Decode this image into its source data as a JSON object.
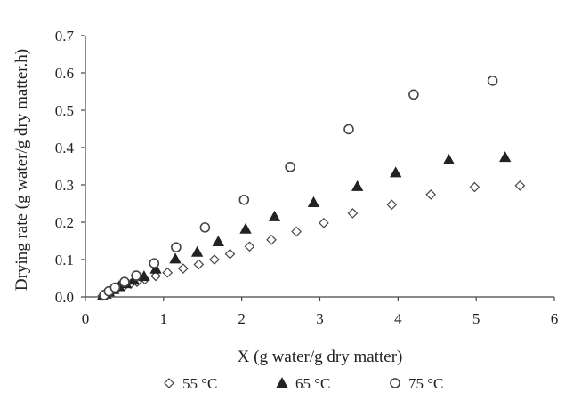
{
  "chart_data": {
    "type": "scatter",
    "xlabel": "X (g water/g dry matter)",
    "ylabel": "Drying rate (g water/g dry matter.h)",
    "xlim": [
      0,
      6
    ],
    "ylim": [
      0,
      0.7
    ],
    "xticks": [
      0,
      1,
      2,
      3,
      4,
      5,
      6
    ],
    "yticks": [
      0.0,
      0.1,
      0.2,
      0.3,
      0.4,
      0.5,
      0.6,
      0.7
    ],
    "ytick_labels": [
      "0.0",
      "0.1",
      "0.2",
      "0.3",
      "0.4",
      "0.5",
      "0.6",
      "0.7"
    ],
    "grid": false,
    "legend_position": "bottom",
    "series": [
      {
        "name": "55 °C",
        "marker": "diamond-open",
        "color": "#444444",
        "points": [
          [
            0.22,
            0.003
          ],
          [
            0.25,
            0.006
          ],
          [
            0.28,
            0.01
          ],
          [
            0.32,
            0.015
          ],
          [
            0.36,
            0.02
          ],
          [
            0.42,
            0.025
          ],
          [
            0.5,
            0.03
          ],
          [
            0.58,
            0.035
          ],
          [
            0.66,
            0.04
          ],
          [
            0.76,
            0.047
          ],
          [
            0.9,
            0.056
          ],
          [
            1.05,
            0.065
          ],
          [
            1.25,
            0.076
          ],
          [
            1.45,
            0.087
          ],
          [
            1.65,
            0.1
          ],
          [
            1.85,
            0.115
          ],
          [
            2.1,
            0.135
          ],
          [
            2.38,
            0.153
          ],
          [
            2.7,
            0.175
          ],
          [
            3.05,
            0.198
          ],
          [
            3.42,
            0.224
          ],
          [
            3.92,
            0.247
          ],
          [
            4.42,
            0.274
          ],
          [
            4.98,
            0.294
          ],
          [
            5.56,
            0.298
          ]
        ]
      },
      {
        "name": "65 °C",
        "marker": "triangle-filled",
        "color": "#222222",
        "points": [
          [
            0.22,
            0.003
          ],
          [
            0.26,
            0.008
          ],
          [
            0.3,
            0.014
          ],
          [
            0.36,
            0.02
          ],
          [
            0.43,
            0.028
          ],
          [
            0.52,
            0.036
          ],
          [
            0.62,
            0.045
          ],
          [
            0.75,
            0.055
          ],
          [
            0.9,
            0.075
          ],
          [
            1.15,
            0.102
          ],
          [
            1.43,
            0.12
          ],
          [
            1.7,
            0.148
          ],
          [
            2.05,
            0.182
          ],
          [
            2.42,
            0.215
          ],
          [
            2.92,
            0.253
          ],
          [
            3.48,
            0.296
          ],
          [
            3.97,
            0.333
          ],
          [
            4.65,
            0.367
          ],
          [
            5.37,
            0.374
          ]
        ]
      },
      {
        "name": "75 °C",
        "marker": "circle-open",
        "color": "#444444",
        "points": [
          [
            0.24,
            0.005
          ],
          [
            0.3,
            0.015
          ],
          [
            0.38,
            0.025
          ],
          [
            0.5,
            0.04
          ],
          [
            0.65,
            0.057
          ],
          [
            0.88,
            0.09
          ],
          [
            1.16,
            0.133
          ],
          [
            1.53,
            0.186
          ],
          [
            2.03,
            0.26
          ],
          [
            2.62,
            0.348
          ],
          [
            3.37,
            0.449
          ],
          [
            4.2,
            0.542
          ],
          [
            5.21,
            0.579
          ]
        ]
      }
    ]
  }
}
